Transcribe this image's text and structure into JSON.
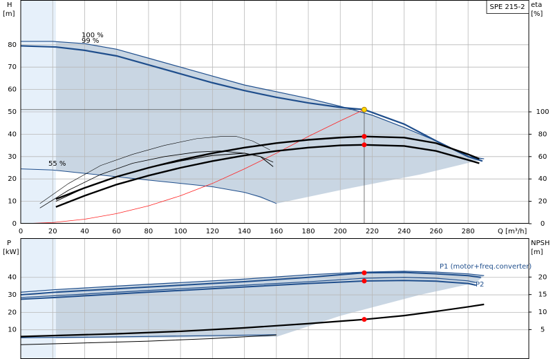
{
  "chart_data": [
    {
      "type": "line",
      "title": "SPE 215-2",
      "xlabel": "Q [m³/h]",
      "ylabel": "H",
      "yunit": "[m]",
      "y2label": "eta",
      "y2unit": "[%]",
      "xlim": [
        0,
        318
      ],
      "ylim": [
        0,
        100
      ],
      "y2lim": [
        0,
        200
      ],
      "xticks": [
        0,
        20,
        40,
        60,
        80,
        100,
        120,
        140,
        160,
        180,
        200,
        220,
        240,
        260,
        280
      ],
      "yticks": [
        0,
        10,
        20,
        30,
        40,
        50,
        60,
        70,
        80
      ],
      "y2ticks": [
        0,
        20,
        40,
        60,
        80,
        100
      ],
      "grid": true,
      "bands": [
        {
          "x": [
            0,
            22
          ],
          "color": "#e6f0fa"
        }
      ],
      "areas": [
        {
          "color": "#c9d6e3",
          "x": [
            22,
            40,
            60,
            80,
            100,
            120,
            140,
            160,
            180,
            200,
            220,
            240,
            260,
            280,
            290,
            285,
            250,
            200,
            160,
            140,
            120,
            100,
            80,
            60,
            40,
            22
          ],
          "y": [
            81.5,
            80.5,
            78,
            74,
            70,
            66,
            62,
            59,
            56,
            52.5,
            48.5,
            43,
            37,
            30,
            29,
            28,
            22,
            15,
            9,
            14,
            16.5,
            18,
            19.5,
            21,
            22.5,
            24
          ]
        }
      ],
      "annotations": [
        "100 %",
        "99 %",
        "55 %"
      ],
      "operating_point": {
        "x": 215,
        "y": 51
      },
      "series": [
        {
          "color": "#1f4e8c",
          "width": 1.2,
          "x": [
            0,
            20,
            40,
            60,
            80,
            100,
            120,
            140,
            160,
            180,
            200,
            220,
            240,
            260,
            280,
            290
          ],
          "values": [
            81.5,
            81.5,
            80.5,
            78,
            74,
            70,
            66,
            62,
            59,
            56,
            52.5,
            48.5,
            43,
            37,
            30,
            29
          ]
        },
        {
          "color": "#1f4e8c",
          "width": 2.2,
          "x": [
            0,
            22,
            40,
            60,
            80,
            100,
            120,
            140,
            160,
            180,
            200,
            215,
            240,
            260,
            280,
            289
          ],
          "values": [
            79.5,
            79,
            77.5,
            75,
            71,
            67,
            63,
            59.5,
            56.5,
            54,
            52,
            51,
            44.5,
            37,
            30,
            28
          ]
        },
        {
          "color": "#1f4e8c",
          "width": 1,
          "x": [
            0,
            20,
            40,
            60,
            80,
            100,
            120,
            140,
            150,
            160
          ],
          "values": [
            24.5,
            24,
            22.5,
            21,
            19.5,
            18,
            16.5,
            14,
            12,
            9
          ]
        },
        {
          "color": "#ff2020",
          "width": 0.8,
          "x": [
            0,
            20,
            40,
            60,
            80,
            100,
            120,
            140,
            160,
            180,
            200,
            215
          ],
          "values": [
            0,
            0.5,
            2,
            4.5,
            8,
            12.5,
            18,
            24.5,
            31.5,
            39,
            46,
            51
          ]
        },
        {
          "color": "#000000",
          "width": 2.4,
          "axis": "y2",
          "x": [
            22,
            40,
            60,
            80,
            100,
            120,
            140,
            160,
            180,
            200,
            215,
            240,
            260,
            280,
            287
          ],
          "values": [
            22,
            32,
            42,
            50,
            57,
            63,
            68,
            72,
            75,
            77,
            78,
            77,
            72,
            62,
            58
          ]
        },
        {
          "color": "#000000",
          "width": 2.4,
          "axis": "y2",
          "x": [
            22,
            40,
            60,
            80,
            100,
            120,
            140,
            160,
            180,
            200,
            215,
            240,
            260,
            280,
            287
          ],
          "values": [
            15,
            25,
            35,
            43,
            50,
            56,
            61,
            65,
            68,
            70,
            70.5,
            69.5,
            65,
            57,
            54
          ]
        },
        {
          "color": "#000000",
          "width": 1,
          "axis": "y2",
          "x": [
            22,
            40,
            60,
            80,
            100,
            120,
            140,
            150,
            158
          ],
          "values": [
            20,
            32,
            42,
            50,
            56,
            61,
            63,
            60,
            51
          ]
        },
        {
          "color": "#000000",
          "width": 0.8,
          "axis": "y2",
          "x": [
            12,
            30,
            50,
            70,
            90,
            110,
            125,
            140,
            150,
            158
          ],
          "values": [
            14,
            30,
            44,
            54,
            60,
            64,
            65,
            63,
            60,
            55
          ]
        },
        {
          "color": "#000000",
          "width": 0.6,
          "axis": "y2",
          "x": [
            12,
            30,
            50,
            70,
            90,
            110,
            125,
            135,
            145,
            156
          ],
          "values": [
            18,
            36,
            52,
            62,
            70,
            76,
            78,
            78,
            74,
            66
          ]
        }
      ],
      "points": [
        {
          "x": 215,
          "value": 51,
          "color": "#ffd700"
        },
        {
          "x": 215,
          "value": 78,
          "axis": "y2",
          "color": "#ff0000"
        },
        {
          "x": 215,
          "value": 70.5,
          "axis": "y2",
          "color": "#ff0000"
        }
      ]
    },
    {
      "type": "line",
      "ylabel": "P",
      "yunit": "[kW]",
      "y2label": "NPSH",
      "y2unit": "[m]",
      "xlim": [
        0,
        318
      ],
      "ylim": [
        -6.7,
        62.4
      ],
      "y2lim": [
        -3.4,
        31.1
      ],
      "yticks": [
        10,
        20,
        30,
        40
      ],
      "y2ticks": [
        5,
        10,
        15,
        20
      ],
      "grid": true,
      "bands": [
        {
          "x": [
            0,
            22
          ],
          "color": "#e6f0fa"
        }
      ],
      "areas": [
        {
          "color": "#c9d6e3",
          "x": [
            22,
            60,
            100,
            140,
            180,
            215,
            240,
            260,
            280,
            290,
            285,
            250,
            200,
            160,
            22
          ],
          "y": [
            33,
            35,
            37,
            39,
            41.5,
            43,
            43.5,
            43,
            42,
            41,
            37,
            30,
            18,
            6,
            5
          ]
        }
      ],
      "series": [
        {
          "color": "#1f4e8c",
          "width": 1.2,
          "x": [
            0,
            22,
            60,
            100,
            140,
            180,
            215,
            240,
            260,
            280,
            290
          ],
          "values": [
            31.5,
            33,
            35,
            37,
            39,
            41.5,
            43,
            43.5,
            43,
            42,
            41
          ]
        },
        {
          "name": "P1 (motor+freq.converter)",
          "color": "#1f4e8c",
          "width": 2,
          "x": [
            0,
            22,
            60,
            100,
            140,
            180,
            215,
            240,
            260,
            280,
            288
          ],
          "values": [
            30,
            31.5,
            33.5,
            35.5,
            37.5,
            40,
            42.6,
            42.8,
            42,
            41,
            40
          ]
        },
        {
          "color": "#1f4e8c",
          "width": 1.2,
          "x": [
            0,
            22,
            60,
            100,
            140,
            180,
            215,
            240,
            260,
            280,
            285
          ],
          "values": [
            28.5,
            29.5,
            31.5,
            33.5,
            35.5,
            37.5,
            39.5,
            40,
            39.5,
            38,
            37
          ]
        },
        {
          "name": "P2",
          "color": "#1f4e8c",
          "width": 2,
          "x": [
            0,
            22,
            60,
            100,
            140,
            180,
            215,
            240,
            260,
            280,
            285
          ],
          "values": [
            27.5,
            28.5,
            30.5,
            32.5,
            34.5,
            36.5,
            37.9,
            38.2,
            37.8,
            36.5,
            35.5
          ]
        },
        {
          "color": "#1f4e8c",
          "width": 1.2,
          "x": [
            0,
            40,
            80,
            120,
            160
          ],
          "values": [
            5.5,
            5.8,
            6.2,
            6.7,
            7.2
          ]
        },
        {
          "color": "#000000",
          "width": 1,
          "x": [
            0,
            40,
            80,
            120,
            160
          ],
          "values": [
            1.5,
            2.5,
            3.5,
            5,
            7
          ]
        },
        {
          "color": "#000000",
          "width": 2.2,
          "axis": "y2",
          "x": [
            0,
            22,
            60,
            100,
            140,
            180,
            215,
            240,
            260,
            280,
            290
          ],
          "values": [
            3,
            3.3,
            3.8,
            4.5,
            5.5,
            6.7,
            7.9,
            9,
            10.2,
            11.5,
            12.2
          ]
        }
      ],
      "points": [
        {
          "x": 215,
          "value": 42.6,
          "color": "#ff0000"
        },
        {
          "x": 215,
          "value": 37.9,
          "color": "#ff0000"
        },
        {
          "x": 215,
          "value": 7.9,
          "axis": "y2",
          "color": "#ff0000"
        }
      ]
    }
  ]
}
